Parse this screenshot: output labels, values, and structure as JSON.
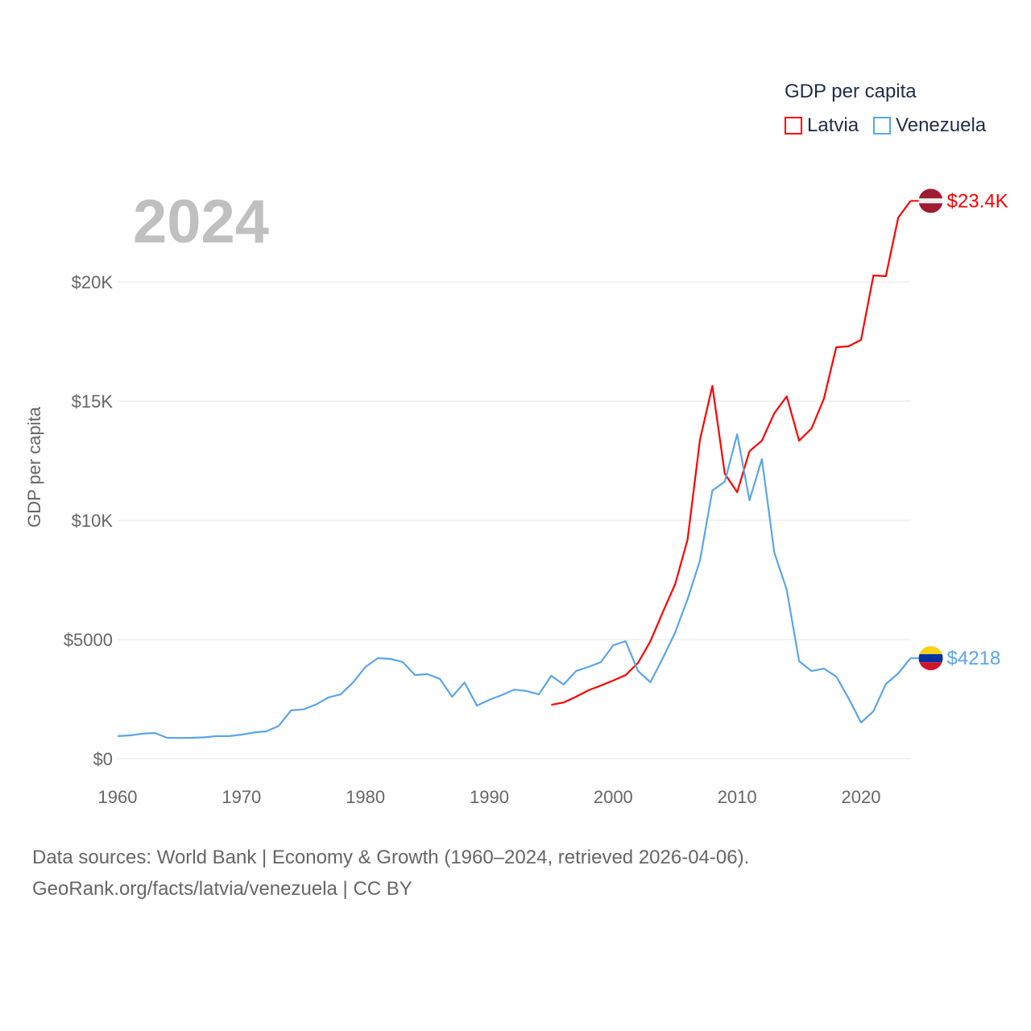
{
  "chart_data": {
    "type": "line",
    "title": "",
    "year_label": "2024",
    "legend_title": "GDP per capita",
    "legend_placement": "top-right",
    "xlabel": "",
    "ylabel": "GDP per capita",
    "xlim": [
      1960,
      2024
    ],
    "ylim": [
      0,
      24000
    ],
    "x_ticks": [
      1960,
      1970,
      1980,
      1990,
      2000,
      2010,
      2020
    ],
    "x_tick_labels": [
      "1960",
      "1970",
      "1980",
      "1990",
      "2000",
      "2010",
      "2020"
    ],
    "y_ticks": [
      0,
      5000,
      10000,
      15000,
      20000
    ],
    "y_tick_labels": [
      "$0",
      "$5000",
      "$10K",
      "$15K",
      "$20K"
    ],
    "grid": true,
    "series": [
      {
        "name": "Latvia",
        "color": "#ff0000",
        "end_label": "$23.4K",
        "x_start": 1995,
        "values": [
          2260,
          2360,
          2600,
          2870,
          3070,
          3280,
          3510,
          4020,
          4930,
          6150,
          7330,
          9190,
          13380,
          15640,
          11960,
          11180,
          12900,
          13340,
          14490,
          15200,
          13340,
          13850,
          15100,
          17260,
          17300,
          17570,
          20270,
          20240,
          22700,
          23400
        ]
      },
      {
        "name": "Venezuela",
        "color": "#5ba5ea",
        "end_label": "$4218",
        "x_start": 1960,
        "values": [
          950,
          980,
          1050,
          1080,
          880,
          870,
          880,
          900,
          950,
          950,
          1010,
          1100,
          1150,
          1380,
          2030,
          2070,
          2270,
          2570,
          2700,
          3200,
          3850,
          4220,
          4190,
          4060,
          3510,
          3550,
          3350,
          2600,
          3200,
          2230,
          2470,
          2670,
          2900,
          2840,
          2700,
          3480,
          3110,
          3680,
          3850,
          4050,
          4760,
          4930,
          3680,
          3210,
          4220,
          5300,
          6690,
          8310,
          11250,
          11620,
          13610,
          10840,
          12570,
          8650,
          7090,
          4090,
          3680,
          3780,
          3450,
          2530,
          1520,
          1990,
          3140,
          3580,
          4218
        ]
      }
    ]
  },
  "footer": {
    "line1": "Data sources: World Bank | Economy & Growth (1960–2024, retrieved 2026-04-06).",
    "line2": "GeoRank.org/facts/latvia/venezuela | CC BY"
  }
}
